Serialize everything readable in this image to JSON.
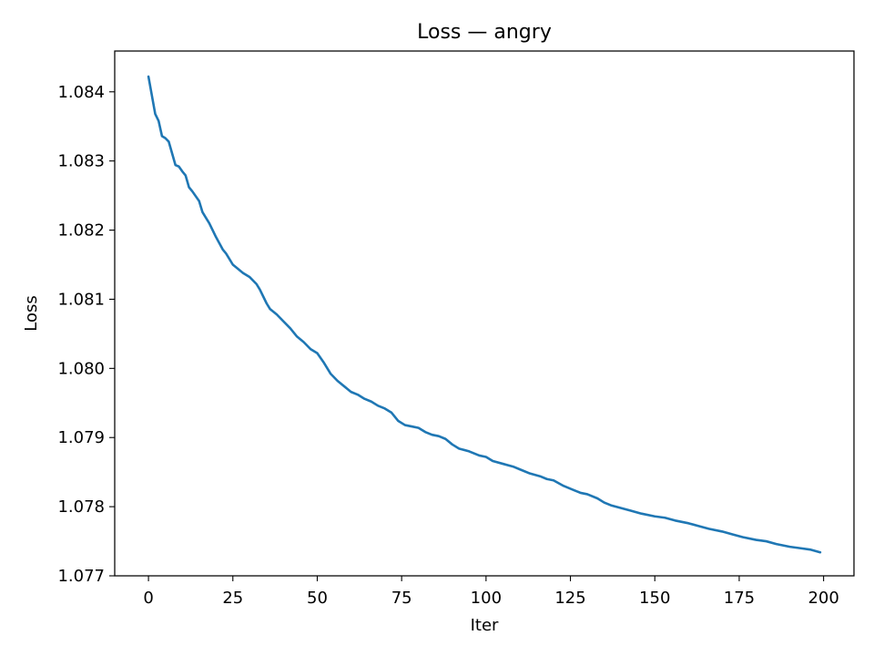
{
  "chart_data": {
    "type": "line",
    "title": "Loss — angry",
    "xlabel": "Iter",
    "ylabel": "Loss",
    "xlim": [
      -10,
      209
    ],
    "ylim": [
      1.077,
      1.08459
    ],
    "xticks": [
      0,
      25,
      50,
      75,
      100,
      125,
      150,
      175,
      200
    ],
    "xtick_labels": [
      "0",
      "25",
      "50",
      "75",
      "100",
      "125",
      "150",
      "175",
      "200"
    ],
    "yticks": [
      1.077,
      1.078,
      1.079,
      1.08,
      1.081,
      1.082,
      1.083,
      1.084
    ],
    "ytick_labels": [
      "1.077",
      "1.078",
      "1.079",
      "1.080",
      "1.081",
      "1.082",
      "1.083",
      "1.084"
    ],
    "grid": false,
    "series": [
      {
        "color": "#1f77b4",
        "x": [
          0,
          2,
          3,
          4,
          5,
          6,
          8,
          9,
          10,
          11,
          12,
          13,
          15,
          16,
          17,
          18,
          20,
          22,
          23,
          25,
          26,
          28,
          30,
          32,
          33,
          35,
          36,
          38,
          40,
          42,
          44,
          46,
          48,
          50,
          52,
          54,
          56,
          58,
          60,
          62,
          64,
          66,
          68,
          70,
          72,
          74,
          76,
          78,
          80,
          82,
          84,
          86,
          88,
          90,
          92,
          95,
          98,
          100,
          102,
          105,
          108,
          110,
          113,
          116,
          118,
          120,
          123,
          126,
          128,
          130,
          133,
          135,
          137,
          140,
          143,
          146,
          150,
          153,
          156,
          160,
          163,
          166,
          170,
          173,
          176,
          180,
          183,
          186,
          188,
          190,
          193,
          196,
          199
        ],
        "y": [
          1.08422,
          1.08368,
          1.08358,
          1.08336,
          1.08333,
          1.08328,
          1.08294,
          1.08292,
          1.08285,
          1.08279,
          1.08262,
          1.08256,
          1.08242,
          1.08226,
          1.08218,
          1.0821,
          1.0819,
          1.08172,
          1.08166,
          1.0815,
          1.08146,
          1.08138,
          1.08132,
          1.08122,
          1.08114,
          1.08094,
          1.08086,
          1.08078,
          1.08068,
          1.08058,
          1.08046,
          1.08038,
          1.08028,
          1.08022,
          1.08008,
          1.07992,
          1.07982,
          1.07974,
          1.07966,
          1.07962,
          1.07956,
          1.07952,
          1.07946,
          1.07942,
          1.07936,
          1.07924,
          1.07918,
          1.07916,
          1.07914,
          1.07908,
          1.07904,
          1.07902,
          1.07898,
          1.0789,
          1.07884,
          1.0788,
          1.07874,
          1.07872,
          1.07866,
          1.07862,
          1.07858,
          1.07854,
          1.07848,
          1.07844,
          1.0784,
          1.07838,
          1.0783,
          1.07824,
          1.0782,
          1.07818,
          1.07812,
          1.07806,
          1.07802,
          1.07798,
          1.07794,
          1.0779,
          1.07786,
          1.07784,
          1.0778,
          1.07776,
          1.07772,
          1.07768,
          1.07764,
          1.0776,
          1.07756,
          1.07752,
          1.0775,
          1.07746,
          1.07744,
          1.07742,
          1.0774,
          1.07738,
          1.07734
        ]
      }
    ]
  }
}
